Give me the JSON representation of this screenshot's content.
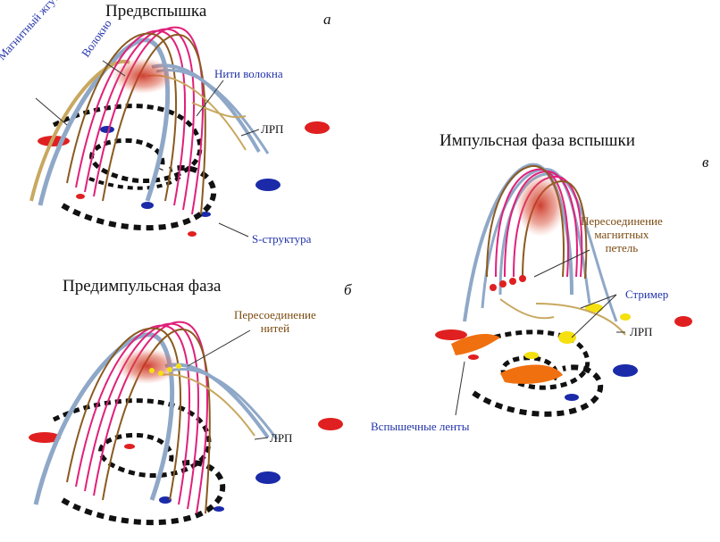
{
  "panels": [
    {
      "id": "a",
      "title": "Предвспышка",
      "letter": "а",
      "labels": {
        "rope": "Магнитный жгут",
        "fiber": "Волокно",
        "threads": "Нити волокна",
        "lrp": "ЛРП",
        "s_structure": "S-структура"
      }
    },
    {
      "id": "b",
      "title": "Предимпульсная фаза",
      "letter": "б",
      "labels": {
        "reconnection": "Пересоединение\nнитей",
        "lrp": "ЛРП"
      }
    },
    {
      "id": "c",
      "title": "Импульсная фаза вспышки",
      "letter": "в",
      "labels": {
        "reconnection": "Пересоединение\nмагнитных\nпетель",
        "streamer": "Стример",
        "lrp": "ЛРП",
        "ribbons": "Вспышечные ленты"
      }
    }
  ],
  "colors": {
    "loop_magenta": "#e0207a",
    "loop_brown": "#8a5a20",
    "loop_blue": "#8fa8c8",
    "loop_tan": "#c8a860",
    "fiber_red": "#d04030",
    "spot_black": "#111111",
    "spot_blue": "#1a2aa8",
    "spot_red": "#e02020",
    "ribbon_orange": "#f07010",
    "streamer_yellow": "#f5e010",
    "label_blue": "#2233aa",
    "label_brown": "#7a4a10"
  }
}
